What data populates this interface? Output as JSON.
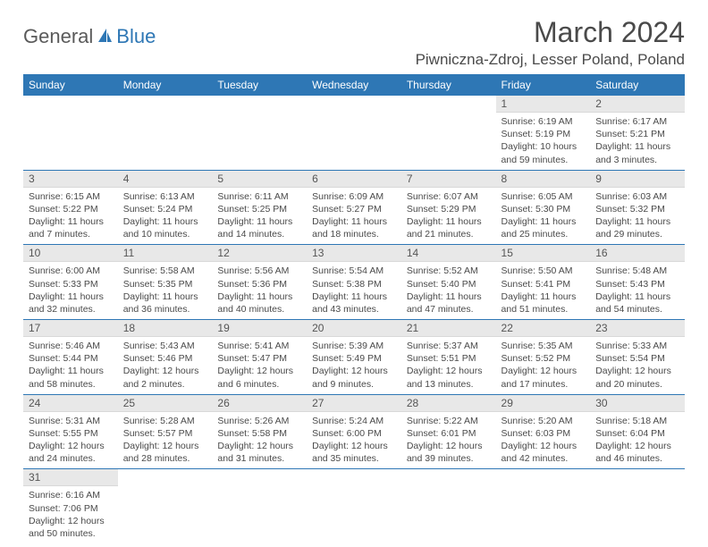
{
  "brand": {
    "part1": "General",
    "part2": "Blue"
  },
  "title": "March 2024",
  "location": "Piwniczna-Zdroj, Lesser Poland, Poland",
  "colors": {
    "header_bg": "#2e77b5",
    "header_fg": "#ffffff",
    "daynum_bg": "#e8e8e8",
    "row_divider": "#2e77b5",
    "text": "#4a4a4a",
    "logo_gray": "#5a5a5a",
    "logo_blue": "#2e77b5"
  },
  "typography": {
    "title_fontsize": 32,
    "location_fontsize": 17,
    "header_fontsize": 12,
    "body_fontsize": 10.5
  },
  "day_headers": [
    "Sunday",
    "Monday",
    "Tuesday",
    "Wednesday",
    "Thursday",
    "Friday",
    "Saturday"
  ],
  "weeks": [
    [
      {
        "empty": true
      },
      {
        "empty": true
      },
      {
        "empty": true
      },
      {
        "empty": true
      },
      {
        "empty": true
      },
      {
        "num": "1",
        "sunrise": "Sunrise: 6:19 AM",
        "sunset": "Sunset: 5:19 PM",
        "daylight": "Daylight: 10 hours and 59 minutes."
      },
      {
        "num": "2",
        "sunrise": "Sunrise: 6:17 AM",
        "sunset": "Sunset: 5:21 PM",
        "daylight": "Daylight: 11 hours and 3 minutes."
      }
    ],
    [
      {
        "num": "3",
        "sunrise": "Sunrise: 6:15 AM",
        "sunset": "Sunset: 5:22 PM",
        "daylight": "Daylight: 11 hours and 7 minutes."
      },
      {
        "num": "4",
        "sunrise": "Sunrise: 6:13 AM",
        "sunset": "Sunset: 5:24 PM",
        "daylight": "Daylight: 11 hours and 10 minutes."
      },
      {
        "num": "5",
        "sunrise": "Sunrise: 6:11 AM",
        "sunset": "Sunset: 5:25 PM",
        "daylight": "Daylight: 11 hours and 14 minutes."
      },
      {
        "num": "6",
        "sunrise": "Sunrise: 6:09 AM",
        "sunset": "Sunset: 5:27 PM",
        "daylight": "Daylight: 11 hours and 18 minutes."
      },
      {
        "num": "7",
        "sunrise": "Sunrise: 6:07 AM",
        "sunset": "Sunset: 5:29 PM",
        "daylight": "Daylight: 11 hours and 21 minutes."
      },
      {
        "num": "8",
        "sunrise": "Sunrise: 6:05 AM",
        "sunset": "Sunset: 5:30 PM",
        "daylight": "Daylight: 11 hours and 25 minutes."
      },
      {
        "num": "9",
        "sunrise": "Sunrise: 6:03 AM",
        "sunset": "Sunset: 5:32 PM",
        "daylight": "Daylight: 11 hours and 29 minutes."
      }
    ],
    [
      {
        "num": "10",
        "sunrise": "Sunrise: 6:00 AM",
        "sunset": "Sunset: 5:33 PM",
        "daylight": "Daylight: 11 hours and 32 minutes."
      },
      {
        "num": "11",
        "sunrise": "Sunrise: 5:58 AM",
        "sunset": "Sunset: 5:35 PM",
        "daylight": "Daylight: 11 hours and 36 minutes."
      },
      {
        "num": "12",
        "sunrise": "Sunrise: 5:56 AM",
        "sunset": "Sunset: 5:36 PM",
        "daylight": "Daylight: 11 hours and 40 minutes."
      },
      {
        "num": "13",
        "sunrise": "Sunrise: 5:54 AM",
        "sunset": "Sunset: 5:38 PM",
        "daylight": "Daylight: 11 hours and 43 minutes."
      },
      {
        "num": "14",
        "sunrise": "Sunrise: 5:52 AM",
        "sunset": "Sunset: 5:40 PM",
        "daylight": "Daylight: 11 hours and 47 minutes."
      },
      {
        "num": "15",
        "sunrise": "Sunrise: 5:50 AM",
        "sunset": "Sunset: 5:41 PM",
        "daylight": "Daylight: 11 hours and 51 minutes."
      },
      {
        "num": "16",
        "sunrise": "Sunrise: 5:48 AM",
        "sunset": "Sunset: 5:43 PM",
        "daylight": "Daylight: 11 hours and 54 minutes."
      }
    ],
    [
      {
        "num": "17",
        "sunrise": "Sunrise: 5:46 AM",
        "sunset": "Sunset: 5:44 PM",
        "daylight": "Daylight: 11 hours and 58 minutes."
      },
      {
        "num": "18",
        "sunrise": "Sunrise: 5:43 AM",
        "sunset": "Sunset: 5:46 PM",
        "daylight": "Daylight: 12 hours and 2 minutes."
      },
      {
        "num": "19",
        "sunrise": "Sunrise: 5:41 AM",
        "sunset": "Sunset: 5:47 PM",
        "daylight": "Daylight: 12 hours and 6 minutes."
      },
      {
        "num": "20",
        "sunrise": "Sunrise: 5:39 AM",
        "sunset": "Sunset: 5:49 PM",
        "daylight": "Daylight: 12 hours and 9 minutes."
      },
      {
        "num": "21",
        "sunrise": "Sunrise: 5:37 AM",
        "sunset": "Sunset: 5:51 PM",
        "daylight": "Daylight: 12 hours and 13 minutes."
      },
      {
        "num": "22",
        "sunrise": "Sunrise: 5:35 AM",
        "sunset": "Sunset: 5:52 PM",
        "daylight": "Daylight: 12 hours and 17 minutes."
      },
      {
        "num": "23",
        "sunrise": "Sunrise: 5:33 AM",
        "sunset": "Sunset: 5:54 PM",
        "daylight": "Daylight: 12 hours and 20 minutes."
      }
    ],
    [
      {
        "num": "24",
        "sunrise": "Sunrise: 5:31 AM",
        "sunset": "Sunset: 5:55 PM",
        "daylight": "Daylight: 12 hours and 24 minutes."
      },
      {
        "num": "25",
        "sunrise": "Sunrise: 5:28 AM",
        "sunset": "Sunset: 5:57 PM",
        "daylight": "Daylight: 12 hours and 28 minutes."
      },
      {
        "num": "26",
        "sunrise": "Sunrise: 5:26 AM",
        "sunset": "Sunset: 5:58 PM",
        "daylight": "Daylight: 12 hours and 31 minutes."
      },
      {
        "num": "27",
        "sunrise": "Sunrise: 5:24 AM",
        "sunset": "Sunset: 6:00 PM",
        "daylight": "Daylight: 12 hours and 35 minutes."
      },
      {
        "num": "28",
        "sunrise": "Sunrise: 5:22 AM",
        "sunset": "Sunset: 6:01 PM",
        "daylight": "Daylight: 12 hours and 39 minutes."
      },
      {
        "num": "29",
        "sunrise": "Sunrise: 5:20 AM",
        "sunset": "Sunset: 6:03 PM",
        "daylight": "Daylight: 12 hours and 42 minutes."
      },
      {
        "num": "30",
        "sunrise": "Sunrise: 5:18 AM",
        "sunset": "Sunset: 6:04 PM",
        "daylight": "Daylight: 12 hours and 46 minutes."
      }
    ],
    [
      {
        "num": "31",
        "sunrise": "Sunrise: 6:16 AM",
        "sunset": "Sunset: 7:06 PM",
        "daylight": "Daylight: 12 hours and 50 minutes."
      },
      {
        "empty": true
      },
      {
        "empty": true
      },
      {
        "empty": true
      },
      {
        "empty": true
      },
      {
        "empty": true
      },
      {
        "empty": true
      }
    ]
  ]
}
